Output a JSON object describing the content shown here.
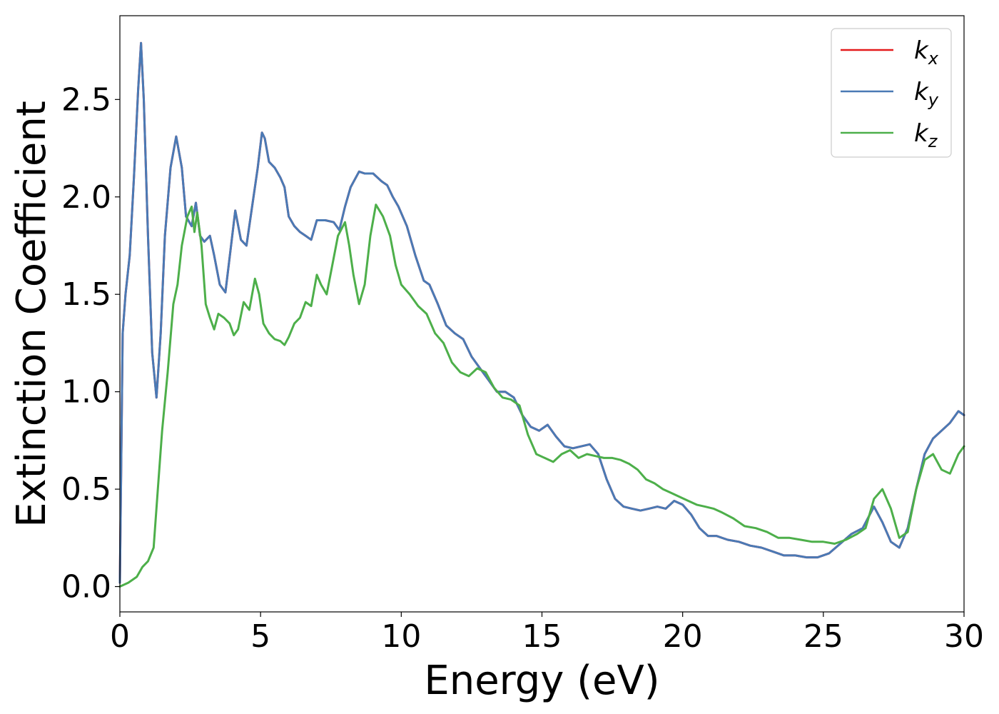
{
  "chart_data": {
    "type": "line",
    "xlabel": "Energy (eV)",
    "ylabel": "Extinction Coefficient",
    "xlim": [
      0,
      30
    ],
    "ylim": [
      -0.13,
      2.93
    ],
    "xticks": [
      0,
      5,
      10,
      15,
      20,
      25,
      30
    ],
    "yticks": [
      0.0,
      0.5,
      1.0,
      1.5,
      2.0,
      2.5
    ],
    "xtick_labels": [
      "0",
      "5",
      "10",
      "15",
      "20",
      "25",
      "30"
    ],
    "ytick_labels": [
      "0.0",
      "0.5",
      "1.0",
      "1.5",
      "2.0",
      "2.5"
    ],
    "grid": false,
    "legend_position": "top-right",
    "series": [
      {
        "name": "k_x",
        "label_main": "k",
        "label_sub": "x",
        "color": "#e41a1c",
        "x": [
          0,
          0.1,
          0.2,
          0.35,
          0.5,
          0.65,
          0.75,
          0.85,
          1.0,
          1.15,
          1.3,
          1.45,
          1.6,
          1.8,
          2.0,
          2.2,
          2.35,
          2.55,
          2.7,
          2.85,
          3.0,
          3.2,
          3.35,
          3.55,
          3.75,
          3.95,
          4.1,
          4.3,
          4.5,
          4.7,
          4.9,
          5.05,
          5.15,
          5.3,
          5.5,
          5.7,
          5.85,
          6.0,
          6.2,
          6.4,
          6.6,
          6.8,
          7.0,
          7.3,
          7.6,
          7.8,
          8.0,
          8.2,
          8.5,
          8.7,
          9.0,
          9.3,
          9.5,
          9.7,
          9.9,
          10.2,
          10.5,
          10.8,
          11.0,
          11.3,
          11.6,
          11.9,
          12.2,
          12.5,
          12.8,
          13.1,
          13.4,
          13.7,
          14.0,
          14.3,
          14.6,
          14.9,
          15.2,
          15.5,
          15.8,
          16.1,
          16.4,
          16.7,
          17.0,
          17.3,
          17.6,
          17.9,
          18.2,
          18.5,
          18.8,
          19.1,
          19.4,
          19.7,
          20.0,
          20.3,
          20.6,
          20.9,
          21.2,
          21.6,
          22.0,
          22.4,
          22.8,
          23.2,
          23.6,
          24.0,
          24.4,
          24.8,
          25.2,
          25.6,
          26.0,
          26.4,
          26.8,
          27.1,
          27.4,
          27.7,
          28.0,
          28.3,
          28.6,
          28.9,
          29.2,
          29.5,
          29.8,
          30.0
        ],
        "y": [
          0.02,
          1.3,
          1.5,
          1.7,
          2.1,
          2.55,
          2.79,
          2.5,
          1.8,
          1.2,
          0.97,
          1.3,
          1.8,
          2.15,
          2.31,
          2.15,
          1.9,
          1.85,
          1.97,
          1.8,
          1.77,
          1.8,
          1.7,
          1.55,
          1.51,
          1.75,
          1.93,
          1.78,
          1.75,
          1.95,
          2.15,
          2.33,
          2.3,
          2.18,
          2.15,
          2.1,
          2.05,
          1.9,
          1.85,
          1.82,
          1.8,
          1.78,
          1.88,
          1.88,
          1.87,
          1.83,
          1.95,
          2.05,
          2.13,
          2.12,
          2.12,
          2.08,
          2.06,
          2.0,
          1.95,
          1.85,
          1.7,
          1.57,
          1.55,
          1.45,
          1.34,
          1.3,
          1.27,
          1.18,
          1.12,
          1.06,
          1.0,
          1.0,
          0.97,
          0.88,
          0.82,
          0.8,
          0.83,
          0.77,
          0.72,
          0.71,
          0.72,
          0.73,
          0.68,
          0.55,
          0.45,
          0.41,
          0.4,
          0.39,
          0.4,
          0.41,
          0.4,
          0.44,
          0.42,
          0.37,
          0.3,
          0.26,
          0.26,
          0.24,
          0.23,
          0.21,
          0.2,
          0.18,
          0.16,
          0.16,
          0.15,
          0.15,
          0.17,
          0.22,
          0.27,
          0.3,
          0.41,
          0.33,
          0.23,
          0.2,
          0.3,
          0.5,
          0.68,
          0.76,
          0.8,
          0.84,
          0.9,
          0.88
        ]
      },
      {
        "name": "k_y",
        "label_main": "k",
        "label_sub": "y",
        "color": "#4a7ab5",
        "x": [
          0,
          0.1,
          0.2,
          0.35,
          0.5,
          0.65,
          0.75,
          0.85,
          1.0,
          1.15,
          1.3,
          1.45,
          1.6,
          1.8,
          2.0,
          2.2,
          2.35,
          2.55,
          2.7,
          2.85,
          3.0,
          3.2,
          3.35,
          3.55,
          3.75,
          3.95,
          4.1,
          4.3,
          4.5,
          4.7,
          4.9,
          5.05,
          5.15,
          5.3,
          5.5,
          5.7,
          5.85,
          6.0,
          6.2,
          6.4,
          6.6,
          6.8,
          7.0,
          7.3,
          7.6,
          7.8,
          8.0,
          8.2,
          8.5,
          8.7,
          9.0,
          9.3,
          9.5,
          9.7,
          9.9,
          10.2,
          10.5,
          10.8,
          11.0,
          11.3,
          11.6,
          11.9,
          12.2,
          12.5,
          12.8,
          13.1,
          13.4,
          13.7,
          14.0,
          14.3,
          14.6,
          14.9,
          15.2,
          15.5,
          15.8,
          16.1,
          16.4,
          16.7,
          17.0,
          17.3,
          17.6,
          17.9,
          18.2,
          18.5,
          18.8,
          19.1,
          19.4,
          19.7,
          20.0,
          20.3,
          20.6,
          20.9,
          21.2,
          21.6,
          22.0,
          22.4,
          22.8,
          23.2,
          23.6,
          24.0,
          24.4,
          24.8,
          25.2,
          25.6,
          26.0,
          26.4,
          26.8,
          27.1,
          27.4,
          27.7,
          28.0,
          28.3,
          28.6,
          28.9,
          29.2,
          29.5,
          29.8,
          30.0
        ],
        "y": [
          0.02,
          1.3,
          1.5,
          1.7,
          2.1,
          2.55,
          2.79,
          2.5,
          1.8,
          1.2,
          0.97,
          1.3,
          1.8,
          2.15,
          2.31,
          2.15,
          1.9,
          1.85,
          1.97,
          1.8,
          1.77,
          1.8,
          1.7,
          1.55,
          1.51,
          1.75,
          1.93,
          1.78,
          1.75,
          1.95,
          2.15,
          2.33,
          2.3,
          2.18,
          2.15,
          2.1,
          2.05,
          1.9,
          1.85,
          1.82,
          1.8,
          1.78,
          1.88,
          1.88,
          1.87,
          1.83,
          1.95,
          2.05,
          2.13,
          2.12,
          2.12,
          2.08,
          2.06,
          2.0,
          1.95,
          1.85,
          1.7,
          1.57,
          1.55,
          1.45,
          1.34,
          1.3,
          1.27,
          1.18,
          1.12,
          1.06,
          1.0,
          1.0,
          0.97,
          0.88,
          0.82,
          0.8,
          0.83,
          0.77,
          0.72,
          0.71,
          0.72,
          0.73,
          0.68,
          0.55,
          0.45,
          0.41,
          0.4,
          0.39,
          0.4,
          0.41,
          0.4,
          0.44,
          0.42,
          0.37,
          0.3,
          0.26,
          0.26,
          0.24,
          0.23,
          0.21,
          0.2,
          0.18,
          0.16,
          0.16,
          0.15,
          0.15,
          0.17,
          0.22,
          0.27,
          0.3,
          0.41,
          0.33,
          0.23,
          0.2,
          0.3,
          0.5,
          0.68,
          0.76,
          0.8,
          0.84,
          0.9,
          0.88
        ]
      },
      {
        "name": "k_z",
        "label_main": "k",
        "label_sub": "z",
        "color": "#4daf4a",
        "x": [
          0,
          0.3,
          0.6,
          0.8,
          1.0,
          1.2,
          1.35,
          1.5,
          1.7,
          1.9,
          2.05,
          2.2,
          2.4,
          2.55,
          2.65,
          2.75,
          2.9,
          3.05,
          3.2,
          3.35,
          3.5,
          3.7,
          3.9,
          4.05,
          4.2,
          4.4,
          4.6,
          4.8,
          4.95,
          5.1,
          5.3,
          5.5,
          5.7,
          5.85,
          6.0,
          6.2,
          6.4,
          6.6,
          6.8,
          7.0,
          7.15,
          7.35,
          7.55,
          7.75,
          8.0,
          8.15,
          8.3,
          8.5,
          8.7,
          8.9,
          9.1,
          9.35,
          9.6,
          9.8,
          10.0,
          10.3,
          10.6,
          10.9,
          11.2,
          11.5,
          11.8,
          12.1,
          12.4,
          12.7,
          13.0,
          13.3,
          13.6,
          13.9,
          14.2,
          14.5,
          14.8,
          15.1,
          15.4,
          15.7,
          16.0,
          16.3,
          16.6,
          16.9,
          17.2,
          17.5,
          17.8,
          18.1,
          18.4,
          18.7,
          19.0,
          19.3,
          19.6,
          19.9,
          20.2,
          20.5,
          20.8,
          21.1,
          21.4,
          21.8,
          22.2,
          22.6,
          23.0,
          23.4,
          23.8,
          24.2,
          24.6,
          25.0,
          25.4,
          25.8,
          26.2,
          26.5,
          26.8,
          27.1,
          27.4,
          27.7,
          28.0,
          28.3,
          28.6,
          28.9,
          29.2,
          29.5,
          29.8,
          30.0
        ],
        "y": [
          0.0,
          0.02,
          0.05,
          0.1,
          0.13,
          0.2,
          0.5,
          0.8,
          1.1,
          1.45,
          1.55,
          1.75,
          1.9,
          1.95,
          1.82,
          1.92,
          1.75,
          1.45,
          1.38,
          1.32,
          1.4,
          1.38,
          1.35,
          1.29,
          1.32,
          1.46,
          1.42,
          1.58,
          1.5,
          1.35,
          1.3,
          1.27,
          1.26,
          1.24,
          1.28,
          1.35,
          1.38,
          1.46,
          1.44,
          1.6,
          1.55,
          1.5,
          1.65,
          1.8,
          1.87,
          1.75,
          1.6,
          1.45,
          1.55,
          1.8,
          1.96,
          1.9,
          1.8,
          1.65,
          1.55,
          1.5,
          1.44,
          1.4,
          1.3,
          1.25,
          1.15,
          1.1,
          1.08,
          1.12,
          1.1,
          1.02,
          0.97,
          0.96,
          0.93,
          0.78,
          0.68,
          0.66,
          0.64,
          0.68,
          0.7,
          0.66,
          0.68,
          0.67,
          0.66,
          0.66,
          0.65,
          0.63,
          0.6,
          0.55,
          0.53,
          0.5,
          0.48,
          0.46,
          0.44,
          0.42,
          0.41,
          0.4,
          0.38,
          0.35,
          0.31,
          0.3,
          0.28,
          0.25,
          0.25,
          0.24,
          0.23,
          0.23,
          0.22,
          0.24,
          0.27,
          0.3,
          0.45,
          0.5,
          0.4,
          0.25,
          0.28,
          0.5,
          0.65,
          0.68,
          0.6,
          0.58,
          0.68,
          0.72
        ]
      }
    ]
  }
}
